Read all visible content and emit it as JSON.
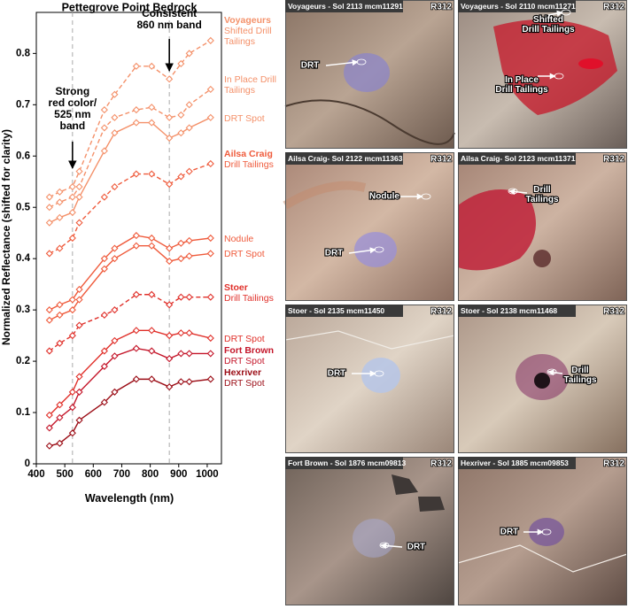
{
  "chart_data": {
    "type": "line",
    "title": "Pettegrove Point Bedrock",
    "xlabel": "Wavelength (nm)",
    "ylabel": "Normalized Reflectance (shifted for clarity)",
    "x": [
      446,
      482,
      527,
      551,
      639,
      675,
      751,
      805,
      867,
      908,
      937,
      1012
    ],
    "xlim": [
      400,
      1050
    ],
    "xticks": [
      400,
      500,
      600,
      700,
      800,
      900,
      1000
    ],
    "ylim": [
      0,
      0.88
    ],
    "yticks": [
      0,
      0.1,
      0.2,
      0.3,
      0.4,
      0.5,
      0.6,
      0.7,
      0.8
    ],
    "series": [
      {
        "site": "Voyageurs",
        "name": "Shifted Drill Tailings",
        "color": "#f4916a",
        "dashed": true,
        "values": [
          0.52,
          0.53,
          0.54,
          0.57,
          0.69,
          0.72,
          0.775,
          0.775,
          0.75,
          0.78,
          0.8,
          0.825
        ]
      },
      {
        "name": "In Place Drill Tailings",
        "color": "#f4916a",
        "dashed": true,
        "values": [
          0.5,
          0.51,
          0.52,
          0.54,
          0.655,
          0.675,
          0.69,
          0.695,
          0.675,
          0.68,
          0.7,
          0.73
        ]
      },
      {
        "name": "DRT Spot",
        "color": "#f4916a",
        "dashed": false,
        "values": [
          0.47,
          0.48,
          0.49,
          0.52,
          0.61,
          0.645,
          0.665,
          0.665,
          0.635,
          0.645,
          0.655,
          0.675
        ]
      },
      {
        "site": "Ailsa Craig",
        "name": "Drill Tailings",
        "color": "#ef5b3c",
        "dashed": true,
        "values": [
          0.41,
          0.42,
          0.44,
          0.47,
          0.52,
          0.54,
          0.565,
          0.565,
          0.545,
          0.56,
          0.57,
          0.585
        ]
      },
      {
        "name": "Nodule",
        "color": "#ef5b3c",
        "dashed": false,
        "values": [
          0.3,
          0.31,
          0.32,
          0.34,
          0.4,
          0.42,
          0.445,
          0.44,
          0.42,
          0.43,
          0.435,
          0.44
        ]
      },
      {
        "name": "DRT Spot",
        "color": "#ef5b3c",
        "dashed": false,
        "values": [
          0.28,
          0.29,
          0.3,
          0.32,
          0.38,
          0.4,
          0.425,
          0.425,
          0.395,
          0.4,
          0.405,
          0.41
        ]
      },
      {
        "site": "Stoer",
        "name": "Drill Tailings",
        "color": "#e0302a",
        "dashed": true,
        "values": [
          0.22,
          0.235,
          0.25,
          0.27,
          0.29,
          0.3,
          0.33,
          0.33,
          0.31,
          0.325,
          0.325,
          0.325
        ]
      },
      {
        "name": "DRT Spot",
        "color": "#e0302a",
        "dashed": false,
        "values": [
          0.095,
          0.115,
          0.14,
          0.17,
          0.22,
          0.24,
          0.26,
          0.26,
          0.25,
          0.255,
          0.255,
          0.245
        ]
      },
      {
        "site": "Fort Brown",
        "name": "DRT Spot",
        "color": "#c4162a",
        "dashed": false,
        "values": [
          0.07,
          0.09,
          0.11,
          0.14,
          0.19,
          0.21,
          0.225,
          0.22,
          0.205,
          0.215,
          0.215,
          0.215
        ]
      },
      {
        "site": "Hexriver",
        "name": "DRT Spot",
        "color": "#9b0d16",
        "dashed": false,
        "values": [
          0.035,
          0.04,
          0.06,
          0.085,
          0.12,
          0.14,
          0.165,
          0.165,
          0.15,
          0.16,
          0.16,
          0.165
        ]
      }
    ],
    "annotations": [
      {
        "lines": [
          "Strong",
          "red color/",
          "525 nm",
          "band"
        ],
        "x": 527
      },
      {
        "lines": [
          "Consistent",
          "860 nm band"
        ],
        "x": 867
      }
    ]
  },
  "panels": [
    {
      "title": "Voyageurs - Sol 2113 mcm11291",
      "filter": "R312",
      "labels": [
        {
          "lines": [
            "DRT"
          ]
        }
      ]
    },
    {
      "title": "Voyageurs - Sol 2110 mcm11271",
      "filter": "R312",
      "labels": [
        {
          "lines": [
            "Shifted",
            "Drill Tailings"
          ]
        },
        {
          "lines": [
            "In Place",
            "Drill Tailings"
          ]
        }
      ]
    },
    {
      "title": "Ailsa Craig- Sol 2122 mcm11363",
      "filter": "R312",
      "labels": [
        {
          "lines": [
            "Nodule"
          ]
        },
        {
          "lines": [
            "DRT"
          ]
        }
      ]
    },
    {
      "title": "Ailsa Craig- Sol 2123 mcm11371",
      "filter": "R312",
      "labels": [
        {
          "lines": [
            "Drill",
            "Tailings"
          ]
        }
      ]
    },
    {
      "title": "Stoer - Sol 2135 mcm11450",
      "filter": "R312",
      "labels": [
        {
          "lines": [
            "DRT"
          ]
        }
      ]
    },
    {
      "title": "Stoer - Sol 2138 mcm11468",
      "filter": "R312",
      "labels": [
        {
          "lines": [
            "Drill",
            "Tailings"
          ]
        }
      ]
    },
    {
      "title": "Fort Brown - Sol 1876 mcm09813",
      "filter": "R312",
      "labels": [
        {
          "lines": [
            "DRT"
          ]
        }
      ]
    },
    {
      "title": "Hexriver - Sol 1885 mcm09853",
      "filter": "R312",
      "labels": [
        {
          "lines": [
            "DRT"
          ]
        }
      ]
    }
  ]
}
